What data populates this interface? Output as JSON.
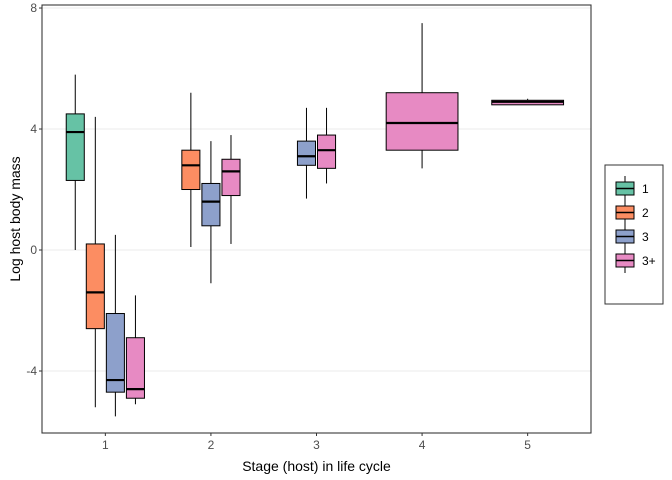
{
  "chart_data": {
    "type": "box",
    "title": "",
    "xlabel": "Stage (host) in life cycle",
    "ylabel": "Log host body mass",
    "categories": [
      "1",
      "2",
      "3",
      "4",
      "5"
    ],
    "ylim": [
      -6.05,
      8.1
    ],
    "yticks": [
      -4,
      0,
      4,
      8
    ],
    "grid": "horizontal major lines at y ticks",
    "legend": {
      "position": "right",
      "entries": [
        "1",
        "2",
        "3",
        "3+"
      ]
    },
    "series": [
      {
        "name": "1",
        "color": "#66C2A5",
        "boxes": [
          {
            "stage": "1",
            "min": 0.0,
            "q1": 2.3,
            "median": 3.9,
            "q3": 4.5,
            "max": 5.8
          }
        ]
      },
      {
        "name": "2",
        "color": "#FC8D62",
        "boxes": [
          {
            "stage": "1",
            "min": -5.2,
            "q1": -2.6,
            "median": -1.4,
            "q3": 0.2,
            "max": 4.4
          },
          {
            "stage": "2",
            "min": 0.1,
            "q1": 2.0,
            "median": 2.8,
            "q3": 3.3,
            "max": 5.2
          }
        ]
      },
      {
        "name": "3",
        "color": "#8DA0CB",
        "boxes": [
          {
            "stage": "1",
            "min": -5.5,
            "q1": -4.7,
            "median": -4.3,
            "q3": -2.1,
            "max": 0.5
          },
          {
            "stage": "2",
            "min": -1.1,
            "q1": 0.8,
            "median": 1.6,
            "q3": 2.2,
            "max": 3.6
          },
          {
            "stage": "3",
            "min": 1.7,
            "q1": 2.8,
            "median": 3.1,
            "q3": 3.6,
            "max": 4.7
          }
        ]
      },
      {
        "name": "3+",
        "color": "#E78AC3",
        "boxes": [
          {
            "stage": "1",
            "min": -5.1,
            "q1": -4.9,
            "median": -4.6,
            "q3": -2.9,
            "max": -1.5
          },
          {
            "stage": "2",
            "min": 0.2,
            "q1": 1.8,
            "median": 2.6,
            "q3": 3.0,
            "max": 3.8
          },
          {
            "stage": "3",
            "min": 2.2,
            "q1": 2.7,
            "median": 3.3,
            "q3": 3.8,
            "max": 4.7
          },
          {
            "stage": "4",
            "min": 2.7,
            "q1": 3.3,
            "median": 4.2,
            "q3": 5.2,
            "max": 7.5
          },
          {
            "stage": "5",
            "min": 4.8,
            "q1": 4.8,
            "median": 4.9,
            "q3": 4.95,
            "max": 5.0
          }
        ]
      }
    ]
  }
}
